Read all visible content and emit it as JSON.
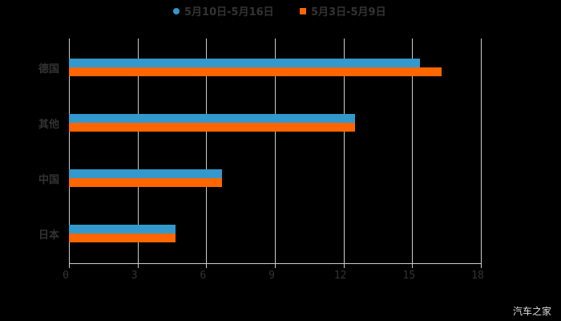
{
  "chart_data": {
    "type": "bar",
    "orientation": "horizontal",
    "title": "",
    "categories": [
      "德国",
      "其他",
      "中国",
      "日本"
    ],
    "series": [
      {
        "name": "5月10日-5月16日",
        "color": "#3399cc",
        "values": [
          15.35,
          12.5,
          6.7,
          4.65
        ]
      },
      {
        "name": "5月3日-5月9日",
        "color": "#ff6600",
        "values": [
          16.3,
          12.5,
          6.7,
          4.65
        ]
      }
    ],
    "xlim": [
      0,
      18
    ],
    "xticks": [
      "0",
      "3",
      "6",
      "9",
      "12",
      "15",
      "18"
    ],
    "xlabel": "",
    "ylabel": "",
    "grid": true,
    "legend_position": "top"
  },
  "legend": {
    "s1": "5月10日-5月16日",
    "s2": "5月3日-5月9日"
  },
  "watermark": "汽车之家"
}
